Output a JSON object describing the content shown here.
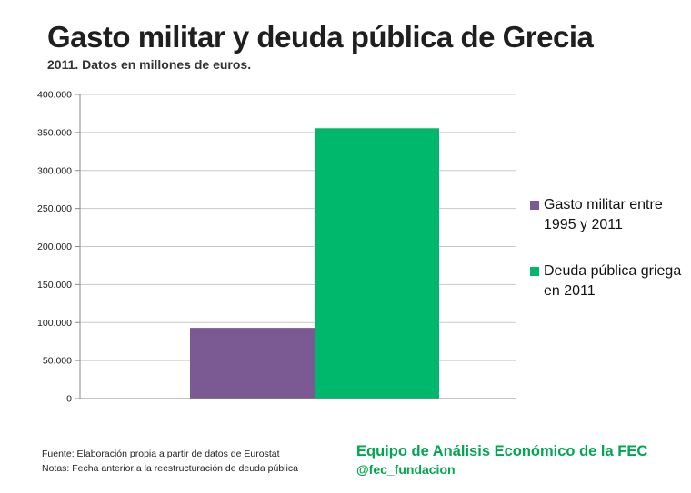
{
  "header": {
    "title": "Gasto militar y deuda pública de Grecia",
    "subtitle": "2011. Datos en millones de euros."
  },
  "chart_data": {
    "type": "bar",
    "title": "Gasto militar y deuda pública de Grecia",
    "subtitle": "2011. Datos en millones de euros.",
    "xlabel": "",
    "ylabel": "",
    "ylim": [
      0,
      400000
    ],
    "yticks": [
      "0",
      "50.000",
      "100.000",
      "150.000",
      "200.000",
      "250.000",
      "300.000",
      "350.000",
      "400.000"
    ],
    "grid": true,
    "legend_position": "right",
    "series": [
      {
        "name": "Gasto militar entre 1995 y 2011",
        "values": [
          93000
        ],
        "color": "#7b5a94"
      },
      {
        "name": "Deuda pública griega en 2011",
        "values": [
          355500
        ],
        "color": "#00b86b"
      }
    ]
  },
  "legend": {
    "items": [
      {
        "label": "Gasto militar entre 1995 y 2011",
        "color": "#7b5a94"
      },
      {
        "label": "Deuda pública griega en 2011",
        "color": "#00b86b"
      }
    ]
  },
  "footer": {
    "source": "Fuente: Elaboración propia a partir de datos de Eurostat",
    "notes": "Notas: Fecha anterior a la reestructuración de deuda pública"
  },
  "brand": {
    "line1": "Equipo de Análisis Económico de la FEC",
    "line2": "@fec_fundacion",
    "color": "#00a651"
  },
  "colors": {
    "grid": "#c8c8c8",
    "axis": "#8a8a8a"
  }
}
